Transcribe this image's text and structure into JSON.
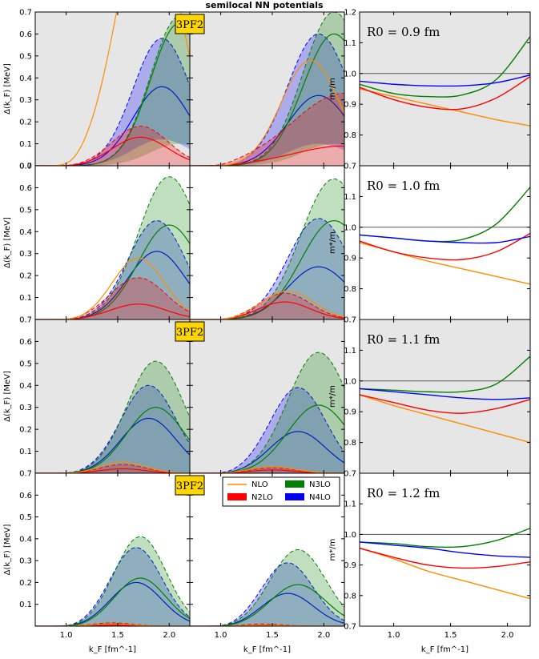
{
  "title": "semilocal NN potentials",
  "labels": {
    "xlabel": "k_F [fm^-1]",
    "ylabel_gap": "Δ(k_F) [MeV]",
    "ylabel_mass": "m*/m",
    "badge": "3PF2"
  },
  "legend": {
    "items": [
      {
        "label": "NLO",
        "color": "#ff8c00",
        "style": "line"
      },
      {
        "label": "N3LO",
        "color": "#008000",
        "style": "box"
      },
      {
        "label": "N2LO",
        "color": "#ff0000",
        "style": "box"
      },
      {
        "label": "N4LO",
        "color": "#0000ff",
        "style": "box"
      }
    ]
  },
  "colors": {
    "nlo": "#ff8c00",
    "n2lo": "#ff0000",
    "n3lo": "#008000",
    "n4lo": "#0000ff",
    "grey_bg": "#e6e6e6",
    "badge_bg": "#ffd700"
  },
  "chart_data": {
    "type": "line",
    "x_range": [
      0.7,
      2.2
    ],
    "gap_ylim": [
      0.0,
      0.7
    ],
    "mass_ylim": [
      0.7,
      1.2
    ],
    "x_ticks": [
      1.0,
      1.5,
      2.0
    ],
    "x_tick_labels": [
      "1.0",
      "1.5",
      "2.0"
    ],
    "gap_ticks": [
      0.0,
      0.1,
      0.2,
      0.3,
      0.4,
      0.5,
      0.6,
      0.7
    ],
    "gap_tick_labels": [
      "0.0",
      "0.1",
      "0.2",
      "0.3",
      "0.4",
      "0.5",
      "0.6",
      "0.7"
    ],
    "mass_ticks": [
      0.7,
      0.8,
      0.9,
      1.0,
      1.1,
      1.2
    ],
    "mass_tick_labels": [
      "0.7",
      "0.8",
      "0.9",
      "1.0",
      "1.1",
      "1.2"
    ],
    "rows": [
      {
        "R0_label": "R0 = 0.9 fm",
        "grey": true,
        "badge": true,
        "gap_left": {
          "NLO": {
            "mu": 1.8,
            "sigma": 0.3,
            "amp": 1.2
          },
          "N2LO": {
            "mu": 1.72,
            "sigma": 0.27,
            "amp": 0.13,
            "lo_amp": 0.0,
            "hi_amp": 0.18
          },
          "N3LO": {
            "mu": 2.1,
            "sigma": 0.28,
            "amp": 0.65,
            "lo_amp": 0.1,
            "hi_amp": 0.68
          },
          "N4LO": {
            "mu": 1.93,
            "sigma": 0.28,
            "amp": 0.36,
            "lo_amp": 0.12,
            "hi_amp": 0.58
          }
        },
        "gap_right": {
          "NLO": {
            "mu": 1.87,
            "sigma": 0.28,
            "amp": 0.48
          },
          "N2LO": {
            "mu": 2.2,
            "sigma": 0.5,
            "amp": 0.09,
            "lo_amp": 0.0,
            "hi_amp": 0.33
          },
          "N3LO": {
            "mu": 2.1,
            "sigma": 0.3,
            "amp": 0.6,
            "lo_amp": 0.1,
            "hi_amp": 0.7
          },
          "N4LO": {
            "mu": 1.95,
            "sigma": 0.3,
            "amp": 0.32,
            "lo_amp": 0.1,
            "hi_amp": 0.6
          }
        },
        "mass": {
          "NLO": {
            "x": [
              0.7,
              1.0,
              1.3,
              1.6,
              1.9,
              2.2
            ],
            "y": [
              0.95,
              0.925,
              0.9,
              0.875,
              0.85,
              0.83
            ]
          },
          "N2LO": {
            "x": [
              0.7,
              1.0,
              1.3,
              1.6,
              1.9,
              2.2
            ],
            "y": [
              0.955,
              0.915,
              0.89,
              0.885,
              0.92,
              0.99
            ]
          },
          "N3LO": {
            "x": [
              0.7,
              1.0,
              1.3,
              1.6,
              1.9,
              2.2
            ],
            "y": [
              0.965,
              0.935,
              0.925,
              0.93,
              0.98,
              1.12
            ]
          },
          "N4LO": {
            "x": [
              0.7,
              1.0,
              1.3,
              1.6,
              1.9,
              2.2
            ],
            "y": [
              0.975,
              0.965,
              0.96,
              0.96,
              0.97,
              0.995
            ]
          }
        }
      },
      {
        "R0_label": "R0 = 1.0 fm",
        "grey": false,
        "badge": false,
        "gap_left": {
          "NLO": {
            "mu": 1.7,
            "sigma": 0.25,
            "amp": 0.28
          },
          "N2LO": {
            "mu": 1.7,
            "sigma": 0.27,
            "amp": 0.07,
            "lo_amp": 0.0,
            "hi_amp": 0.19
          },
          "N3LO": {
            "mu": 2.0,
            "sigma": 0.3,
            "amp": 0.43,
            "lo_amp": 0.0,
            "hi_amp": 0.65
          },
          "N4LO": {
            "mu": 1.88,
            "sigma": 0.28,
            "amp": 0.31,
            "lo_amp": 0.0,
            "hi_amp": 0.45
          }
        },
        "gap_right": {
          "NLO": {
            "mu": 1.65,
            "sigma": 0.25,
            "amp": 0.13
          },
          "N2LO": {
            "mu": 1.62,
            "sigma": 0.25,
            "amp": 0.08,
            "lo_amp": 0.0,
            "hi_amp": 0.12
          },
          "N3LO": {
            "mu": 2.1,
            "sigma": 0.32,
            "amp": 0.45,
            "lo_amp": 0.0,
            "hi_amp": 0.64
          },
          "N4LO": {
            "mu": 1.95,
            "sigma": 0.3,
            "amp": 0.24,
            "lo_amp": 0.0,
            "hi_amp": 0.46
          }
        },
        "mass": {
          "NLO": {
            "x": [
              0.7,
              1.0,
              1.3,
              1.6,
              1.9,
              2.2
            ],
            "y": [
              0.95,
              0.92,
              0.89,
              0.865,
              0.84,
              0.815
            ]
          },
          "N2LO": {
            "x": [
              0.7,
              1.0,
              1.3,
              1.6,
              1.9,
              2.2
            ],
            "y": [
              0.955,
              0.92,
              0.9,
              0.895,
              0.92,
              0.98
            ]
          },
          "N3LO": {
            "x": [
              0.7,
              1.0,
              1.3,
              1.6,
              1.9,
              2.2
            ],
            "y": [
              0.975,
              0.965,
              0.955,
              0.96,
              1.01,
              1.13
            ]
          },
          "N4LO": {
            "x": [
              0.7,
              1.0,
              1.3,
              1.6,
              1.9,
              2.2
            ],
            "y": [
              0.975,
              0.965,
              0.955,
              0.95,
              0.95,
              0.97
            ]
          }
        }
      },
      {
        "R0_label": "R0 = 1.1 fm",
        "grey": true,
        "badge": true,
        "gap_left": {
          "NLO": {
            "mu": 1.55,
            "sigma": 0.22,
            "amp": 0.05
          },
          "N2LO": {
            "mu": 1.55,
            "sigma": 0.22,
            "amp": 0.02,
            "lo_amp": 0.0,
            "hi_amp": 0.04
          },
          "N3LO": {
            "mu": 1.87,
            "sigma": 0.28,
            "amp": 0.3,
            "lo_amp": 0.0,
            "hi_amp": 0.51
          },
          "N4LO": {
            "mu": 1.8,
            "sigma": 0.27,
            "amp": 0.25,
            "lo_amp": 0.0,
            "hi_amp": 0.4
          }
        },
        "gap_right": {
          "NLO": {
            "mu": 1.5,
            "sigma": 0.22,
            "amp": 0.03
          },
          "N2LO": {
            "mu": 1.5,
            "sigma": 0.22,
            "amp": 0.015,
            "lo_amp": 0.0,
            "hi_amp": 0.025
          },
          "N3LO": {
            "mu": 1.95,
            "sigma": 0.3,
            "amp": 0.31,
            "lo_amp": 0.0,
            "hi_amp": 0.55
          },
          "N4LO": {
            "mu": 1.75,
            "sigma": 0.27,
            "amp": 0.19,
            "lo_amp": 0.0,
            "hi_amp": 0.39
          }
        },
        "mass": {
          "NLO": {
            "x": [
              0.7,
              1.0,
              1.3,
              1.6,
              1.9,
              2.2
            ],
            "y": [
              0.955,
              0.92,
              0.89,
              0.86,
              0.83,
              0.8
            ]
          },
          "N2LO": {
            "x": [
              0.7,
              1.0,
              1.3,
              1.6,
              1.9,
              2.2
            ],
            "y": [
              0.955,
              0.93,
              0.905,
              0.895,
              0.91,
              0.94
            ]
          },
          "N3LO": {
            "x": [
              0.7,
              1.0,
              1.3,
              1.6,
              1.9,
              2.2
            ],
            "y": [
              0.975,
              0.97,
              0.965,
              0.965,
              0.99,
              1.08
            ]
          },
          "N4LO": {
            "x": [
              0.7,
              1.0,
              1.3,
              1.6,
              1.9,
              2.2
            ],
            "y": [
              0.975,
              0.965,
              0.955,
              0.945,
              0.94,
              0.945
            ]
          }
        }
      },
      {
        "R0_label": "R0 = 1.2 fm",
        "grey": false,
        "badge": true,
        "gap_left": {
          "NLO": {
            "mu": 1.45,
            "sigma": 0.2,
            "amp": 0.01
          },
          "N2LO": {
            "mu": 1.45,
            "sigma": 0.2,
            "amp": 0.005,
            "lo_amp": 0.0,
            "hi_amp": 0.015
          },
          "N3LO": {
            "mu": 1.72,
            "sigma": 0.25,
            "amp": 0.22,
            "lo_amp": 0.0,
            "hi_amp": 0.41
          },
          "N4LO": {
            "mu": 1.68,
            "sigma": 0.25,
            "amp": 0.2,
            "lo_amp": 0.0,
            "hi_amp": 0.36
          }
        },
        "gap_right": {
          "NLO": {
            "mu": 1.4,
            "sigma": 0.2,
            "amp": 0.005
          },
          "N2LO": {
            "mu": 1.4,
            "sigma": 0.2,
            "amp": 0.003,
            "lo_amp": 0.0,
            "hi_amp": 0.01
          },
          "N3LO": {
            "mu": 1.75,
            "sigma": 0.27,
            "amp": 0.19,
            "lo_amp": 0.0,
            "hi_amp": 0.35
          },
          "N4LO": {
            "mu": 1.65,
            "sigma": 0.25,
            "amp": 0.15,
            "lo_amp": 0.0,
            "hi_amp": 0.29
          }
        },
        "mass": {
          "NLO": {
            "x": [
              0.7,
              1.0,
              1.3,
              1.6,
              1.9,
              2.2
            ],
            "y": [
              0.955,
              0.92,
              0.88,
              0.85,
              0.82,
              0.79
            ]
          },
          "N2LO": {
            "x": [
              0.7,
              1.0,
              1.3,
              1.6,
              1.9,
              2.2
            ],
            "y": [
              0.955,
              0.925,
              0.9,
              0.89,
              0.895,
              0.91
            ]
          },
          "N3LO": {
            "x": [
              0.7,
              1.0,
              1.3,
              1.6,
              1.9,
              2.2
            ],
            "y": [
              0.975,
              0.97,
              0.96,
              0.96,
              0.98,
              1.02
            ]
          },
          "N4LO": {
            "x": [
              0.7,
              1.0,
              1.3,
              1.6,
              1.9,
              2.2
            ],
            "y": [
              0.975,
              0.965,
              0.955,
              0.94,
              0.93,
              0.925
            ]
          }
        }
      }
    ]
  }
}
